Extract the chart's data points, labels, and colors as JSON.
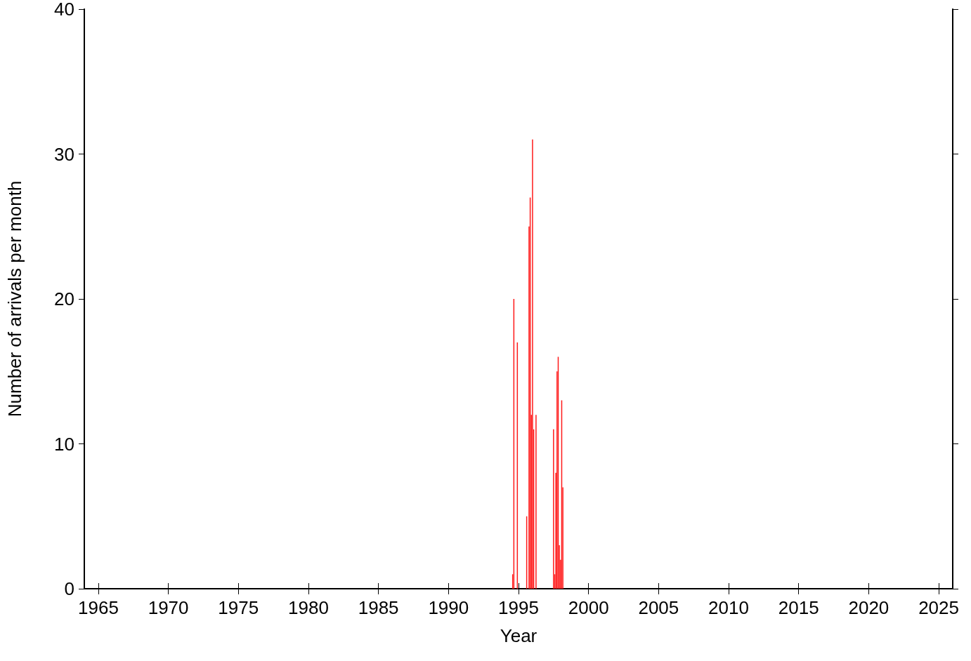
{
  "chart_data": {
    "type": "bar",
    "xlabel": "Year",
    "ylabel": "Number of arrivals per month",
    "x": [
      "1994-08",
      "1994-09",
      "1994-12",
      "1995-08",
      "1995-10",
      "1995-11",
      "1995-12",
      "1996-01",
      "1996-02",
      "1996-04",
      "1997-07",
      "1997-08",
      "1997-09",
      "1997-10",
      "1997-11",
      "1997-12",
      "1998-01",
      "1998-02",
      "1998-03"
    ],
    "values": [
      1,
      20,
      17,
      5,
      25,
      27,
      12,
      31,
      11,
      12,
      11,
      1,
      8,
      15,
      16,
      3,
      2,
      13,
      7
    ],
    "color": "#ff1a1a",
    "xlim": [
      "1964",
      "2026"
    ],
    "xticks": [
      "1965",
      "1970",
      "1975",
      "1980",
      "1985",
      "1990",
      "1995",
      "2000",
      "2005",
      "2010",
      "2015",
      "2020",
      "2025"
    ],
    "ylim": [
      0,
      40
    ],
    "yticks": [
      0,
      10,
      20,
      30,
      40
    ],
    "grid": false
  }
}
